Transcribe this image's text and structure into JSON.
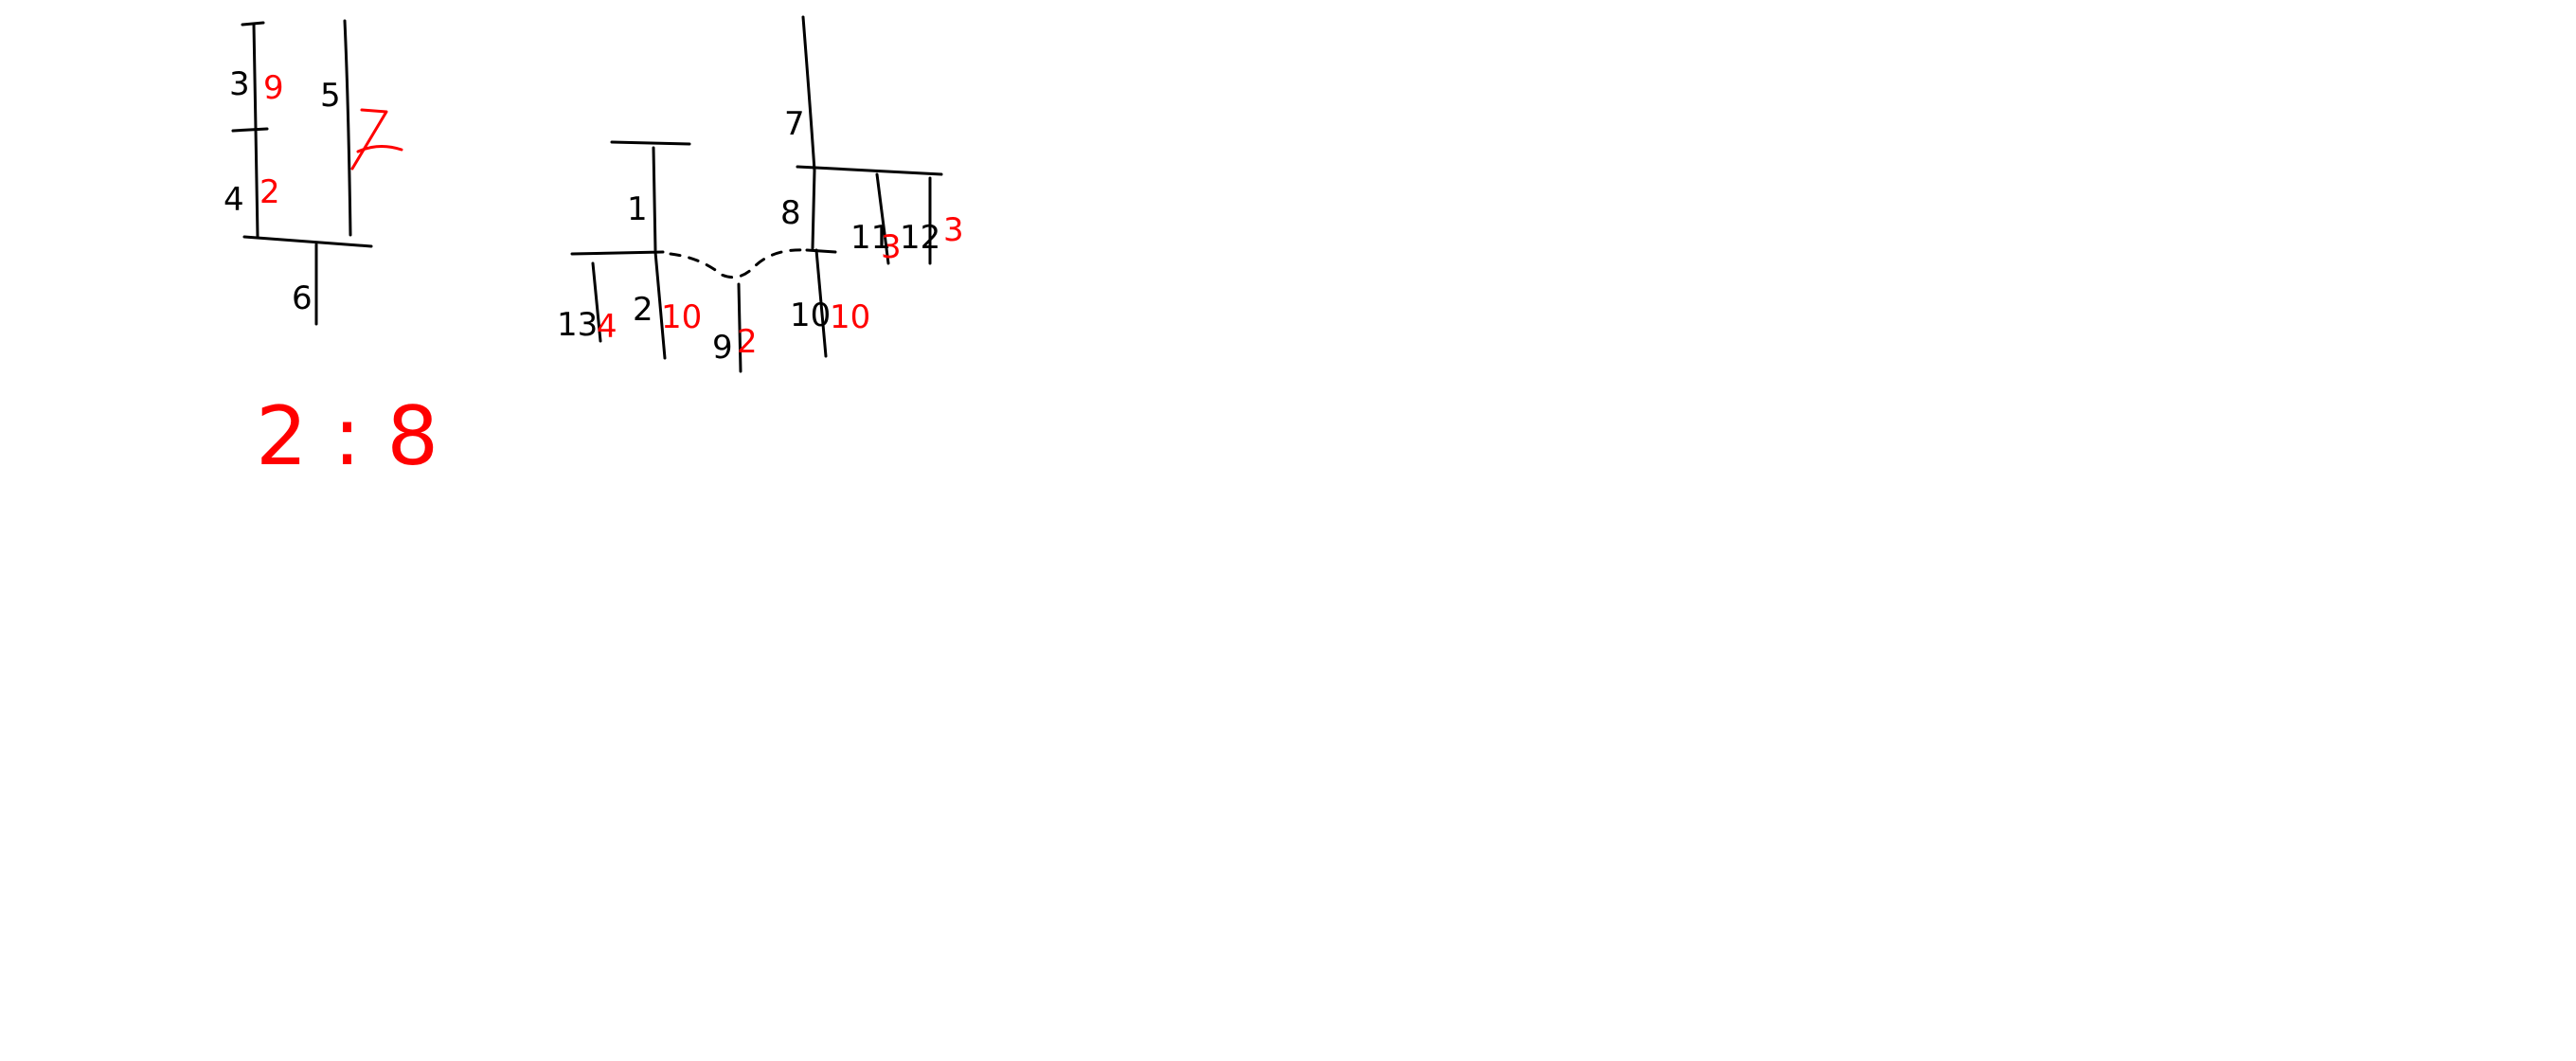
{
  "colors": {
    "ink": "#000000",
    "accent": "#ff0000",
    "background": "#ffffff"
  },
  "diagram_left": {
    "labels": {
      "l3": "3",
      "r9": "9",
      "l4": "4",
      "r2": "2",
      "l5": "5",
      "r7": "7",
      "l6": "6"
    },
    "ratio": "2 : 8"
  },
  "diagram_right": {
    "labels": {
      "l1": "1",
      "l7": "7",
      "l8": "8",
      "l13": "13",
      "r4": "4",
      "l2": "2",
      "r10a": "10",
      "l9": "9",
      "r2": "2",
      "l10": "10",
      "r10b": "10",
      "l11": "11",
      "r3a": "3",
      "l12": "12",
      "r3b": "3"
    }
  }
}
